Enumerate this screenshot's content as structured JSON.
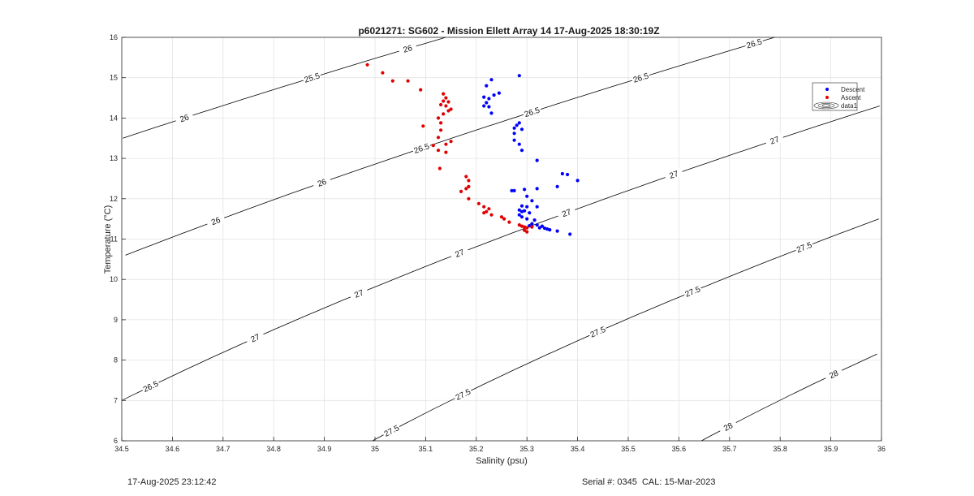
{
  "chart_data": {
    "type": "scatter",
    "title": "p6021271: SG602 - Mission Ellett Array 14 17-Aug-2025 18:30:19Z",
    "xlabel": "Salinity (psu)",
    "ylabel": "Temperature (°C)",
    "xlim": [
      34.5,
      36
    ],
    "ylim": [
      6,
      16
    ],
    "xticks": [
      "34.5",
      "34.6",
      "34.7",
      "34.8",
      "34.9",
      "35",
      "35.1",
      "35.2",
      "35.3",
      "35.4",
      "35.5",
      "35.6",
      "35.7",
      "35.8",
      "35.9",
      "36"
    ],
    "yticks": [
      "6",
      "7",
      "8",
      "9",
      "10",
      "11",
      "12",
      "13",
      "14",
      "15",
      "16"
    ],
    "grid": true,
    "legend_position": "top-right",
    "series": [
      {
        "name": "Descent",
        "color": "#0000ff",
        "marker": "dot",
        "points": [
          [
            35.285,
            15.05
          ],
          [
            35.23,
            14.95
          ],
          [
            35.22,
            14.8
          ],
          [
            35.245,
            14.62
          ],
          [
            35.235,
            14.57
          ],
          [
            35.215,
            14.52
          ],
          [
            35.225,
            14.48
          ],
          [
            35.22,
            14.38
          ],
          [
            35.215,
            14.3
          ],
          [
            35.225,
            14.28
          ],
          [
            35.23,
            14.12
          ],
          [
            35.285,
            13.88
          ],
          [
            35.28,
            13.82
          ],
          [
            35.275,
            13.75
          ],
          [
            35.29,
            13.72
          ],
          [
            35.275,
            13.62
          ],
          [
            35.275,
            13.45
          ],
          [
            35.285,
            13.35
          ],
          [
            35.29,
            13.2
          ],
          [
            35.32,
            12.95
          ],
          [
            35.37,
            12.62
          ],
          [
            35.38,
            12.6
          ],
          [
            35.4,
            12.45
          ],
          [
            35.36,
            12.3
          ],
          [
            35.32,
            12.25
          ],
          [
            35.27,
            12.2
          ],
          [
            35.275,
            12.2
          ],
          [
            35.295,
            12.23
          ],
          [
            35.3,
            12.06
          ],
          [
            35.31,
            11.95
          ],
          [
            35.29,
            11.82
          ],
          [
            35.3,
            11.8
          ],
          [
            35.32,
            11.8
          ],
          [
            35.285,
            11.72
          ],
          [
            35.29,
            11.68
          ],
          [
            35.295,
            11.7
          ],
          [
            35.305,
            11.65
          ],
          [
            35.285,
            11.6
          ],
          [
            35.29,
            11.55
          ],
          [
            35.3,
            11.5
          ],
          [
            35.315,
            11.47
          ],
          [
            35.31,
            11.38
          ],
          [
            35.32,
            11.35
          ],
          [
            35.305,
            11.33
          ],
          [
            35.33,
            11.32
          ],
          [
            35.325,
            11.28
          ],
          [
            35.335,
            11.27
          ],
          [
            35.34,
            11.25
          ],
          [
            35.345,
            11.23
          ],
          [
            35.36,
            11.2
          ],
          [
            35.385,
            11.12
          ]
        ]
      },
      {
        "name": "Ascent",
        "color": "#e00000",
        "marker": "dot",
        "points": [
          [
            34.985,
            15.32
          ],
          [
            35.015,
            15.12
          ],
          [
            35.035,
            14.92
          ],
          [
            35.065,
            14.92
          ],
          [
            35.09,
            14.7
          ],
          [
            35.135,
            14.6
          ],
          [
            35.14,
            14.5
          ],
          [
            35.135,
            14.42
          ],
          [
            35.145,
            14.4
          ],
          [
            35.13,
            14.33
          ],
          [
            35.14,
            14.3
          ],
          [
            35.15,
            14.22
          ],
          [
            35.145,
            14.18
          ],
          [
            35.135,
            14.1
          ],
          [
            35.125,
            14.0
          ],
          [
            35.13,
            13.88
          ],
          [
            35.095,
            13.8
          ],
          [
            35.13,
            13.7
          ],
          [
            35.125,
            13.52
          ],
          [
            35.15,
            13.42
          ],
          [
            35.14,
            13.35
          ],
          [
            35.115,
            13.32
          ],
          [
            35.125,
            13.2
          ],
          [
            35.14,
            13.15
          ],
          [
            35.128,
            12.75
          ],
          [
            35.18,
            12.55
          ],
          [
            35.185,
            12.45
          ],
          [
            35.185,
            12.3
          ],
          [
            35.18,
            12.25
          ],
          [
            35.17,
            12.18
          ],
          [
            35.185,
            12.0
          ],
          [
            35.205,
            11.88
          ],
          [
            35.215,
            11.8
          ],
          [
            35.225,
            11.75
          ],
          [
            35.22,
            11.68
          ],
          [
            35.215,
            11.65
          ],
          [
            35.23,
            11.6
          ],
          [
            35.25,
            11.55
          ],
          [
            35.255,
            11.5
          ],
          [
            35.265,
            11.42
          ],
          [
            35.285,
            11.35
          ],
          [
            35.29,
            11.32
          ],
          [
            35.295,
            11.3
          ],
          [
            35.3,
            11.28
          ],
          [
            35.31,
            11.3
          ],
          [
            35.295,
            11.22
          ],
          [
            35.3,
            11.18
          ]
        ]
      },
      {
        "name": "data1",
        "type": "contour",
        "color": "#000000"
      }
    ],
    "contour_levels": [
      25.5,
      26,
      26.5,
      27,
      27.5,
      28
    ],
    "contour_labels": [
      "25.5",
      "26",
      "26",
      "26",
      "26",
      "26.5",
      "26.5",
      "26.5",
      "26.5",
      "26.5",
      "27",
      "27",
      "27",
      "27",
      "27",
      "27",
      "27.5",
      "27.5",
      "27.5",
      "27.5",
      "27.5",
      "28",
      "28"
    ]
  },
  "footer": {
    "left": "17-Aug-2025 23:12:42",
    "right": "Serial #: 0345  CAL: 15-Mar-2023"
  }
}
